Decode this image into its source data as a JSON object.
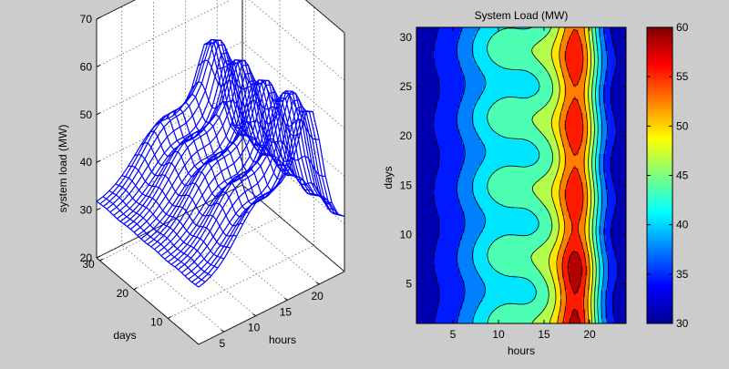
{
  "chart_data": [
    {
      "type": "surface",
      "style": "wireframe",
      "color": "#0000ff",
      "title": "",
      "xlabel": "hours",
      "ylabel": "days",
      "zlabel": "system load (MW)",
      "xlim": [
        1,
        24
      ],
      "ylim": [
        1,
        31
      ],
      "zlim": [
        20,
        70
      ],
      "xticks": [
        5,
        10,
        15,
        20
      ],
      "yticks": [
        10,
        20,
        30
      ],
      "zticks": [
        20,
        30,
        40,
        50,
        60,
        70
      ],
      "view": "3-D perspective, viewed from the front-left corner",
      "grid": true
    },
    {
      "type": "contourf",
      "title": "System Load (MW)",
      "xlabel": "hours",
      "ylabel": "days",
      "xlim": [
        1,
        24
      ],
      "ylim": [
        1,
        31
      ],
      "xticks": [
        5,
        10,
        15,
        20
      ],
      "yticks": [
        5,
        10,
        15,
        20,
        25,
        30
      ],
      "colorbar": {
        "min": 30,
        "max": 60,
        "ticks": [
          30,
          35,
          40,
          45,
          50,
          55,
          60
        ],
        "colormap": "jet",
        "position": "right"
      },
      "levels": [
        30,
        33,
        36,
        39,
        42,
        45,
        48,
        51,
        54,
        57,
        60
      ]
    }
  ]
}
